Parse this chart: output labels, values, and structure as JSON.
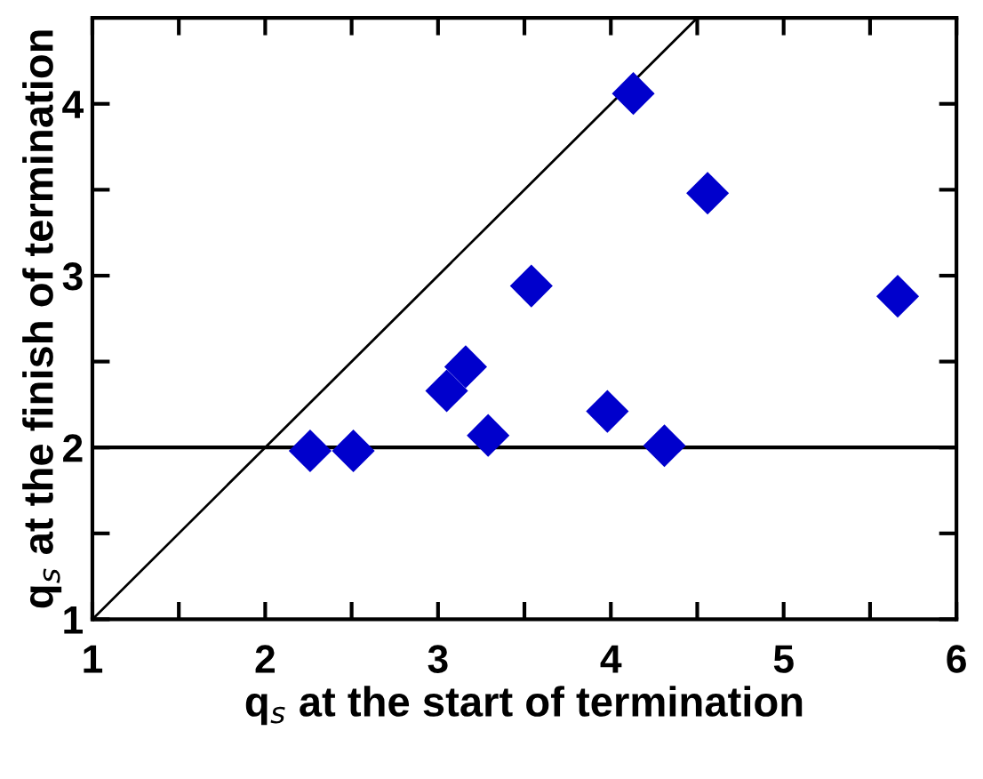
{
  "chart_data": {
    "type": "scatter",
    "xlabel": "q$_{s}$ at the start of termination",
    "ylabel": "q$_{s}$ at the finish of termination",
    "xlim": [
      1,
      6
    ],
    "ylim": [
      1,
      4.5
    ],
    "xticks": [
      1,
      {
        "value": 1.5,
        "label": null
      },
      2,
      {
        "value": 2.5,
        "label": null
      },
      3,
      {
        "value": 3.5,
        "label": null
      },
      4,
      {
        "value": 4.5,
        "label": null
      },
      5,
      {
        "value": 5.5,
        "label": null
      },
      6
    ],
    "yticks": [
      1,
      {
        "value": 1.5,
        "label": null
      },
      2,
      {
        "value": 2.5,
        "label": null
      },
      3,
      {
        "value": 3.5,
        "label": null
      },
      4
    ],
    "grid": false,
    "legend": false,
    "series": [
      {
        "marker": "diamond",
        "color": "#0000cc",
        "x": [
          2.26,
          2.51,
          3.05,
          3.16,
          3.29,
          3.54,
          3.98,
          4.13,
          4.31,
          4.56,
          5.66
        ],
        "values": [
          1.98,
          1.98,
          2.33,
          2.47,
          2.07,
          2.94,
          2.21,
          4.06,
          2.01,
          3.48,
          2.88
        ]
      },
      {
        "type": "line",
        "marker": "none",
        "color": "#000000",
        "x": [
          1,
          4.5
        ],
        "values": [
          1,
          4.5
        ]
      }
    ],
    "ref_lines": [
      {
        "axis": "y",
        "value": 2,
        "color": "#000000"
      }
    ]
  }
}
